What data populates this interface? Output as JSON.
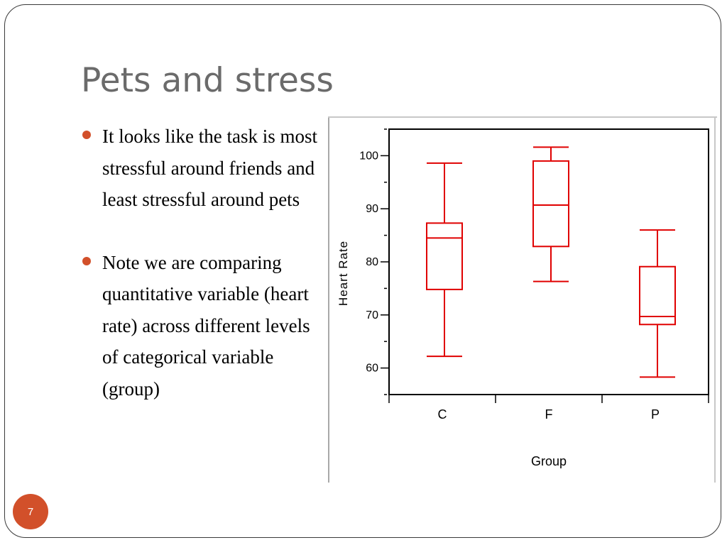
{
  "slide": {
    "title": "Pets and stress",
    "page_number": "7",
    "accent_color": "#d2502a"
  },
  "bullets": [
    "It looks like the task is most stressful around friends and least stressful around pets",
    "Note we are comparing quantitative variable (heart rate) across different levels of categorical variable (group)"
  ],
  "chart_data": {
    "type": "boxplot",
    "xlabel": "Group",
    "ylabel": "Heart Rate",
    "categories": [
      "C",
      "F",
      "P"
    ],
    "ylim": [
      55,
      105
    ],
    "yticks": [
      60,
      70,
      80,
      90,
      100
    ],
    "minor_yticks": [
      55,
      65,
      75,
      85,
      95,
      105
    ],
    "box_color": "#e00000",
    "grid": false,
    "boxes": [
      {
        "category": "C",
        "min": 62.2,
        "q1": 74.8,
        "median": 84.5,
        "q3": 87.3,
        "max": 98.6
      },
      {
        "category": "F",
        "min": 76.3,
        "q1": 82.9,
        "median": 90.7,
        "q3": 99.0,
        "max": 101.6
      },
      {
        "category": "P",
        "min": 58.3,
        "q1": 68.2,
        "median": 69.7,
        "q3": 79.1,
        "max": 86.0
      }
    ]
  }
}
